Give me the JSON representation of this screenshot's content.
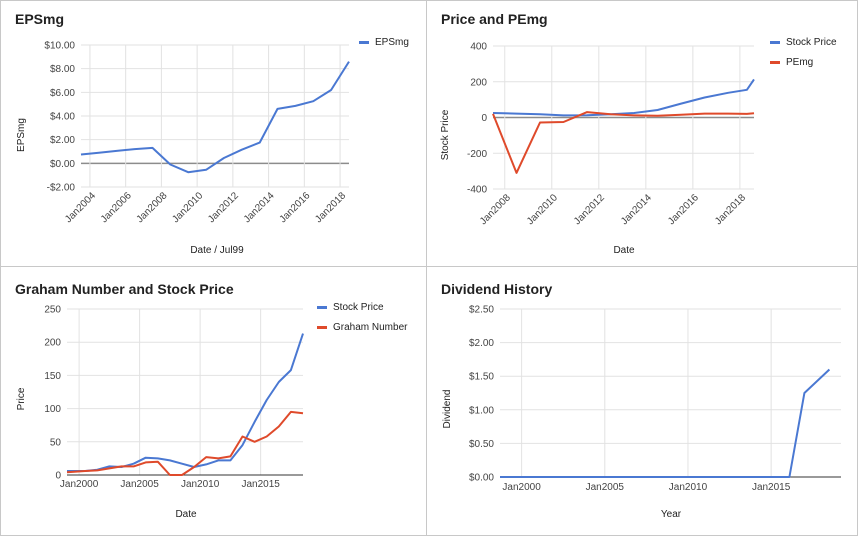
{
  "colors": {
    "blue": "#4a78d2",
    "red": "#df4a2b",
    "grid": "#e2e2e2",
    "zero": "#8c8c8c"
  },
  "chart_data": [
    {
      "type": "line",
      "title": "EPSmg",
      "xlabel": "Date / Jul99",
      "ylabel": "EPSmg",
      "xlim": [
        2003.5,
        2018.5
      ],
      "ylim": [
        -2,
        10
      ],
      "x_ticks": [
        2004,
        2006,
        2008,
        2010,
        2012,
        2014,
        2016,
        2018
      ],
      "x_tick_labels": [
        "Jan2004",
        "Jan2006",
        "Jan2008",
        "Jan2010",
        "Jan2012",
        "Jan2014",
        "Jan2016",
        "Jan2018"
      ],
      "y_ticks": [
        -2,
        0,
        2,
        4,
        6,
        8,
        10
      ],
      "y_tick_labels": [
        "-$2.00",
        "$0.00",
        "$2.00",
        "$4.00",
        "$6.00",
        "$8.00",
        "$10.00"
      ],
      "legend": "right",
      "series": [
        {
          "name": "EPSmg",
          "color": "#4a78d2",
          "x": [
            2003.5,
            2004.5,
            2005.5,
            2006.5,
            2007.5,
            2008.5,
            2009.5,
            2010.5,
            2011.5,
            2012.5,
            2013.5,
            2014.5,
            2015.5,
            2016.5,
            2017.5,
            2018.5
          ],
          "y": [
            0.75,
            0.9,
            1.05,
            1.2,
            1.3,
            -0.1,
            -0.75,
            -0.55,
            0.45,
            1.15,
            1.75,
            4.6,
            4.85,
            5.25,
            6.2,
            8.6
          ]
        }
      ]
    },
    {
      "type": "line",
      "title": "Price and PEmg",
      "xlabel": "Date",
      "ylabel": "Stock Price",
      "xlim": [
        2007.5,
        2018.6
      ],
      "ylim": [
        -400,
        400
      ],
      "x_ticks": [
        2008,
        2010,
        2012,
        2014,
        2016,
        2018
      ],
      "x_tick_labels": [
        "Jan2008",
        "Jan2010",
        "Jan2012",
        "Jan2014",
        "Jan2016",
        "Jan2018"
      ],
      "y_ticks": [
        -400,
        -200,
        0,
        200,
        400
      ],
      "y_tick_labels": [
        "-400",
        "-200",
        "0",
        "200",
        "400"
      ],
      "legend": "right",
      "series": [
        {
          "name": "Stock Price",
          "color": "#4a78d2",
          "x": [
            2007.5,
            2008.5,
            2009.5,
            2010.5,
            2011.5,
            2012.5,
            2013.5,
            2014.5,
            2015.5,
            2016.5,
            2017.5,
            2018.3,
            2018.6
          ],
          "y": [
            25,
            22,
            18,
            12,
            13,
            18,
            25,
            42,
            78,
            112,
            138,
            155,
            213
          ]
        },
        {
          "name": "PEmg",
          "color": "#df4a2b",
          "x": [
            2007.5,
            2008.5,
            2009.5,
            2010.5,
            2011.5,
            2012.5,
            2013.5,
            2014.5,
            2015.5,
            2016.5,
            2017.5,
            2018.3,
            2018.6
          ],
          "y": [
            20,
            -310,
            -28,
            -25,
            30,
            18,
            12,
            10,
            15,
            22,
            22,
            20,
            24
          ]
        }
      ]
    },
    {
      "type": "line",
      "title": "Graham Number and Stock Price",
      "xlabel": "Date",
      "ylabel": "Price",
      "xlim": [
        1999.0,
        2018.5
      ],
      "ylim": [
        0,
        250
      ],
      "x_ticks": [
        2000,
        2005,
        2010,
        2015
      ],
      "x_tick_labels": [
        "Jan2000",
        "Jan2005",
        "Jan2010",
        "Jan2015"
      ],
      "y_ticks": [
        0,
        50,
        100,
        150,
        200,
        250
      ],
      "y_tick_labels": [
        "0",
        "50",
        "100",
        "150",
        "200",
        "250"
      ],
      "legend": "right",
      "series": [
        {
          "name": "Stock Price",
          "color": "#4a78d2",
          "x": [
            1999.0,
            2000.5,
            2001.5,
            2002.5,
            2003.5,
            2004.5,
            2005.5,
            2006.5,
            2007.5,
            2008.5,
            2009.5,
            2010.5,
            2011.5,
            2012.5,
            2013.5,
            2014.5,
            2015.5,
            2016.5,
            2017.5,
            2018.5
          ],
          "y": [
            6,
            6,
            8,
            13,
            12,
            17,
            26,
            25,
            22,
            17,
            12,
            16,
            22,
            22,
            45,
            80,
            113,
            140,
            158,
            213
          ]
        },
        {
          "name": "Graham Number",
          "color": "#df4a2b",
          "x": [
            1999.0,
            2000.5,
            2001.5,
            2002.5,
            2003.5,
            2004.5,
            2005.5,
            2006.5,
            2007.5,
            2008.5,
            2009.5,
            2010.5,
            2011.5,
            2012.5,
            2013.5,
            2014.5,
            2015.5,
            2016.5,
            2017.5,
            2018.5
          ],
          "y": [
            4,
            6,
            7,
            10,
            13,
            13,
            19,
            20,
            0,
            0,
            12,
            27,
            25,
            28,
            58,
            50,
            58,
            73,
            95,
            93
          ]
        }
      ]
    },
    {
      "type": "line",
      "title": "Dividend History",
      "xlabel": "Year",
      "ylabel": "Dividend",
      "xlim": [
        1998.7,
        2019.2
      ],
      "ylim": [
        0,
        2.5
      ],
      "x_ticks": [
        2000,
        2005,
        2010,
        2015
      ],
      "x_tick_labels": [
        "Jan2000",
        "Jan2005",
        "Jan2010",
        "Jan2015"
      ],
      "y_ticks": [
        0,
        0.5,
        1,
        1.5,
        2,
        2.5
      ],
      "y_tick_labels": [
        "$0.00",
        "$0.50",
        "$1.00",
        "$1.50",
        "$2.00",
        "$2.50"
      ],
      "legend": "none",
      "series": [
        {
          "name": "",
          "color": "#4a78d2",
          "x": [
            1998.7,
            2016.1,
            2017.0,
            2018.5
          ],
          "y": [
            0,
            0,
            1.25,
            1.6
          ]
        }
      ]
    }
  ]
}
